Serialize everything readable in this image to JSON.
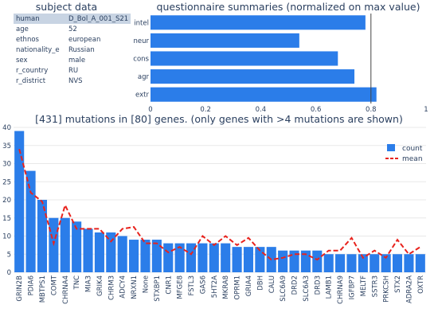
{
  "subject": {
    "title": "subject data",
    "header": {
      "key": "human",
      "value": "D_Bol_A_001_S21"
    },
    "rows": [
      {
        "key": "age",
        "value": "52"
      },
      {
        "key": "ethnos",
        "value": "european"
      },
      {
        "key": "nationality_e",
        "value": "Russian"
      },
      {
        "key": "sex",
        "value": "male"
      },
      {
        "key": "r_country",
        "value": "RU"
      },
      {
        "key": "r_district",
        "value": "NVS"
      }
    ]
  },
  "chart_data": [
    {
      "type": "bar",
      "orientation": "horizontal",
      "title": "questionnaire summaries (normalized on max value)",
      "categories": [
        "intel",
        "neur",
        "cons",
        "agr",
        "extr"
      ],
      "values": [
        0.78,
        0.54,
        0.68,
        0.74,
        0.82
      ],
      "xlim": [
        0,
        1
      ],
      "xticks": [
        "0",
        "0.2",
        "0.4",
        "0.6",
        "0.8",
        "1"
      ],
      "vline": 0.8,
      "bar_color": "#2b7de9"
    },
    {
      "type": "bar",
      "title": "[431] mutations in [80] genes. (only genes with >4 mutations are shown)",
      "categories": [
        "GRIN2B",
        "PDIA6",
        "MBTPS1",
        "COMT",
        "CHRNA4",
        "TNC",
        "MIA3",
        "GRIK4",
        "CHRM3",
        "ADCY4",
        "NRXN1",
        "None",
        "STXBP1",
        "CNR1",
        "MFGE8",
        "FSTL3",
        "GAS6",
        "5HT2A",
        "MKRA8",
        "OPRM1",
        "GRIA4",
        "DBH",
        "CALU",
        "SLC6A9",
        "DRD2",
        "SLC6A3",
        "DRD3",
        "LAMB1",
        "CHRNA9",
        "IGFBP7",
        "MELTF",
        "SSTR3",
        "PRKCSH",
        "STX2",
        "ADRA2A",
        "OXTR"
      ],
      "series": [
        {
          "name": "count",
          "type": "bar",
          "color": "#2b7de9",
          "values": [
            39,
            28,
            20,
            15,
            15,
            14,
            12,
            11,
            11,
            10,
            9,
            9,
            9,
            8,
            8,
            8,
            8,
            8,
            8,
            7,
            7,
            7,
            7,
            6,
            6,
            6,
            6,
            5,
            5,
            5,
            5,
            5,
            5,
            5,
            5,
            5
          ]
        },
        {
          "name": "mean",
          "type": "line",
          "color": "#e8231d",
          "values": [
            34,
            22,
            19.5,
            8,
            18.5,
            12,
            12,
            12,
            8.5,
            12,
            12.5,
            8,
            8,
            5.5,
            7,
            5,
            10,
            7.5,
            10,
            7.5,
            9.5,
            6,
            3.5,
            4,
            5,
            5,
            3.5,
            6,
            6,
            9.5,
            4,
            6,
            4,
            9,
            5,
            7
          ]
        }
      ],
      "ylim": [
        0,
        40
      ],
      "yticks": [
        "0",
        "5",
        "10",
        "15",
        "20",
        "25",
        "30",
        "35",
        "40"
      ],
      "legend": "top-right",
      "grid": true
    }
  ]
}
